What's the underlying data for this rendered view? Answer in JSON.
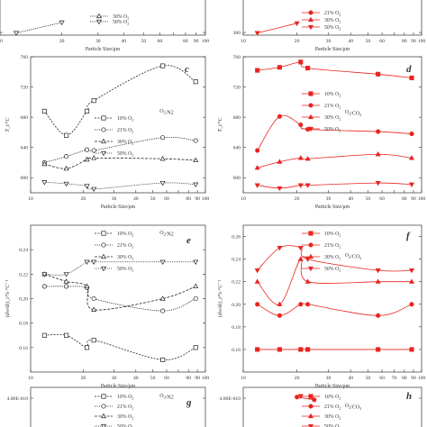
{
  "colors": {
    "black": "#222222",
    "red": "#e8241f",
    "frame": "#333333"
  },
  "chart_data": [
    {
      "id": "b",
      "type": "line",
      "panel_letter": "",
      "xlabel": "Particle Size/μm",
      "ylabel": "",
      "xlim": [
        10,
        100
      ],
      "ylim": [
        370,
        520
      ],
      "log_x": true,
      "x_ticks": [
        10,
        20,
        30,
        40,
        50,
        60,
        70,
        80,
        90,
        100
      ],
      "x_tick_labels": [
        "10",
        "20",
        "30",
        "40",
        "50",
        "60",
        "",
        "80",
        "90",
        "100"
      ],
      "y_ticks": [
        380
      ],
      "y_tick_labels": [
        "380"
      ],
      "legend_title": "",
      "series": [
        {
          "name": "30% O2",
          "marker": "triangle-up",
          "x": [],
          "y": []
        },
        {
          "name": "50% O2",
          "marker": "triangle-down",
          "x": [
            12,
            20
          ],
          "y": [
            378,
            418
          ]
        }
      ]
    },
    {
      "id": "b2",
      "type": "line",
      "panel_letter": "",
      "xlabel": "Particle Size/μm",
      "ylabel": "",
      "xlim": [
        10,
        100
      ],
      "ylim": [
        370,
        520
      ],
      "log_x": true,
      "x_ticks": [
        10,
        20,
        30,
        40,
        50,
        60,
        70,
        80,
        90,
        100
      ],
      "x_tick_labels": [
        "10",
        "20",
        "30",
        "40",
        "50",
        "60",
        "",
        "80",
        "90",
        "100"
      ],
      "y_ticks": [
        380
      ],
      "y_tick_labels": [
        "380"
      ],
      "legend_title": "",
      "series": [
        {
          "name": "21% O2",
          "marker": "circle-filled",
          "x": [],
          "y": []
        },
        {
          "name": "30% O2",
          "marker": "triangle-up-filled",
          "x": [],
          "y": []
        },
        {
          "name": "50% O2",
          "marker": "triangle-down-filled",
          "x": [
            12,
            20
          ],
          "y": [
            378,
            415
          ]
        }
      ]
    },
    {
      "id": "c",
      "type": "line",
      "panel_letter": "c",
      "xlabel": "Particle Size/μm",
      "ylabel": "T_i/°C",
      "xlim": [
        10,
        100
      ],
      "ylim": [
        580,
        760
      ],
      "log_x": true,
      "x_ticks": [
        10,
        20,
        30,
        40,
        50,
        60,
        70,
        80,
        90,
        100
      ],
      "x_tick_labels": [
        "10",
        "20",
        "30",
        "40",
        "50",
        "60",
        "",
        "80",
        "90",
        "100"
      ],
      "y_ticks": [
        600,
        640,
        680,
        720,
        760
      ],
      "y_tick_labels": [
        "600",
        "640",
        "680",
        "720",
        "760"
      ],
      "legend_title": "O2/N2",
      "series": [
        {
          "name": "10% O2",
          "marker": "square",
          "x": [
            12,
            16,
            21,
            23,
            57,
            88
          ],
          "y": [
            688,
            656,
            688,
            702,
            748,
            727
          ]
        },
        {
          "name": "21% O2",
          "marker": "circle",
          "x": [
            12,
            16,
            21,
            23,
            57,
            88
          ],
          "y": [
            620,
            628,
            637,
            636,
            653,
            649
          ]
        },
        {
          "name": "30% O2",
          "marker": "triangle-up",
          "x": [
            12,
            16,
            21,
            23,
            57,
            88
          ],
          "y": [
            618,
            612,
            624,
            626,
            625,
            623
          ]
        },
        {
          "name": "50% O2",
          "marker": "triangle-down",
          "x": [
            12,
            16,
            21,
            23,
            57,
            88
          ],
          "y": [
            594,
            592,
            589,
            585,
            593,
            591
          ]
        }
      ]
    },
    {
      "id": "d",
      "type": "line",
      "panel_letter": "d",
      "xlabel": "Particle Size/μm",
      "ylabel": "T_i/°C",
      "xlim": [
        10,
        100
      ],
      "ylim": [
        580,
        760
      ],
      "log_x": true,
      "x_ticks": [
        10,
        20,
        30,
        40,
        50,
        60,
        70,
        80,
        90,
        100
      ],
      "x_tick_labels": [
        "10",
        "20",
        "30",
        "40",
        "50",
        "60",
        "",
        "80",
        "90",
        "100"
      ],
      "y_ticks": [
        600,
        640,
        680,
        720,
        760
      ],
      "y_tick_labels": [
        "600",
        "640",
        "680",
        "720",
        "760"
      ],
      "legend_title": "O2/CO2",
      "series": [
        {
          "name": "10% O2",
          "marker": "square-filled",
          "x": [
            12,
            16,
            21,
            23,
            57,
            88
          ],
          "y": [
            742,
            746,
            753,
            745,
            737,
            732
          ]
        },
        {
          "name": "21% O2",
          "marker": "circle-filled",
          "x": [
            12,
            16,
            21,
            23,
            57,
            88
          ],
          "y": [
            636,
            681,
            670,
            664,
            661,
            658
          ]
        },
        {
          "name": "30% O2",
          "marker": "triangle-up-filled",
          "x": [
            12,
            16,
            21,
            23,
            57,
            88
          ],
          "y": [
            613,
            621,
            626,
            625,
            631,
            626
          ]
        },
        {
          "name": "50% O2",
          "marker": "triangle-down-filled",
          "x": [
            12,
            16,
            21,
            23,
            57,
            88
          ],
          "y": [
            590,
            586,
            590,
            590,
            593,
            591
          ]
        }
      ]
    },
    {
      "id": "e",
      "type": "line",
      "panel_letter": "e",
      "xlabel": "Particle Size/μm",
      "ylabel": "(dw/dt)_i/%·°C⁻¹",
      "xlim": [
        10,
        100
      ],
      "ylim": [
        0.14,
        0.26
      ],
      "log_x": true,
      "x_ticks": [
        10,
        20,
        30,
        40,
        50,
        60,
        70,
        80,
        90,
        100
      ],
      "x_tick_labels": [
        "10",
        "20",
        "30",
        "40",
        "50",
        "60",
        "",
        "80",
        "90",
        "100"
      ],
      "y_ticks": [
        0.16,
        0.18,
        0.2,
        0.22,
        0.24
      ],
      "y_tick_labels": [
        "0.16",
        "0.18",
        "0.20",
        "0.22",
        "0.24"
      ],
      "legend_title": "O2/N2",
      "series": [
        {
          "name": "10% O2",
          "marker": "square",
          "x": [
            12,
            16,
            21,
            23,
            57,
            88
          ],
          "y": [
            0.17,
            0.17,
            0.16,
            0.166,
            0.15,
            0.16
          ]
        },
        {
          "name": "21% O2",
          "marker": "circle",
          "x": [
            12,
            16,
            21,
            23,
            57,
            88
          ],
          "y": [
            0.21,
            0.21,
            0.209,
            0.2,
            0.19,
            0.2
          ]
        },
        {
          "name": "30% O2",
          "marker": "triangle-up",
          "x": [
            12,
            16,
            21,
            23,
            57,
            88
          ],
          "y": [
            0.22,
            0.214,
            0.21,
            0.191,
            0.2,
            0.21
          ]
        },
        {
          "name": "50% O2",
          "marker": "triangle-down",
          "x": [
            12,
            16,
            21,
            23,
            57,
            88
          ],
          "y": [
            0.22,
            0.22,
            0.23,
            0.23,
            0.23,
            0.23
          ]
        }
      ]
    },
    {
      "id": "f",
      "type": "line",
      "panel_letter": "f",
      "xlabel": "Particle Size/μm",
      "ylabel": "(dw/dt)_i/%·°C⁻¹",
      "xlim": [
        10,
        100
      ],
      "ylim": [
        0.14,
        0.27
      ],
      "log_x": true,
      "x_ticks": [
        10,
        20,
        30,
        40,
        50,
        60,
        70,
        80,
        90,
        100
      ],
      "x_tick_labels": [
        "10",
        "20",
        "30",
        "40",
        "50",
        "60",
        "70",
        "80",
        "90",
        "100"
      ],
      "y_ticks": [
        0.16,
        0.18,
        0.2,
        0.22,
        0.24,
        0.26
      ],
      "y_tick_labels": [
        "0.16",
        "0.18",
        "0.20",
        "0.22",
        "0.24",
        "0.26"
      ],
      "legend_title": "O2/CO2",
      "series": [
        {
          "name": "10% O2",
          "marker": "square-filled",
          "x": [
            12,
            16,
            21,
            23,
            57,
            88
          ],
          "y": [
            0.16,
            0.16,
            0.16,
            0.16,
            0.16,
            0.16
          ]
        },
        {
          "name": "21% O2",
          "marker": "circle-filled",
          "x": [
            12,
            16,
            21,
            23,
            57,
            88
          ],
          "y": [
            0.2,
            0.19,
            0.2,
            0.2,
            0.19,
            0.2
          ]
        },
        {
          "name": "30% O2",
          "marker": "triangle-up-filled",
          "x": [
            12,
            16,
            21,
            23,
            57,
            88
          ],
          "y": [
            0.22,
            0.2,
            0.24,
            0.22,
            0.22,
            0.22
          ]
        },
        {
          "name": "50% O2",
          "marker": "triangle-down-filled",
          "x": [
            12,
            16,
            21,
            23,
            57,
            88
          ],
          "y": [
            0.23,
            0.25,
            0.25,
            0.24,
            0.23,
            0.23
          ]
        }
      ]
    },
    {
      "id": "g",
      "type": "line",
      "panel_letter": "g",
      "xlabel": "",
      "ylabel": "",
      "xlim": [
        10,
        100
      ],
      "ylim": [
        0,
        5e-10
      ],
      "log_x": true,
      "x_ticks": [],
      "x_tick_labels": [],
      "y_ticks": [
        4e-10
      ],
      "y_tick_labels": [
        "4.00E-010"
      ],
      "legend_title": "O2/N2",
      "series": [
        {
          "name": "10% O2",
          "marker": "square",
          "x": [],
          "y": []
        },
        {
          "name": "21% O2",
          "marker": "circle",
          "x": [],
          "y": []
        },
        {
          "name": "30% O2",
          "marker": "triangle-up",
          "x": [],
          "y": []
        },
        {
          "name": "50% O2",
          "marker": "triangle-down",
          "x": [],
          "y": []
        }
      ]
    },
    {
      "id": "h",
      "type": "line",
      "panel_letter": "h",
      "xlabel": "",
      "ylabel": "",
      "xlim": [
        10,
        100
      ],
      "ylim": [
        0,
        5e-10
      ],
      "log_x": true,
      "x_ticks": [],
      "x_tick_labels": [],
      "y_ticks": [
        4e-10
      ],
      "y_tick_labels": [
        "4.00E-010"
      ],
      "legend_title": "O2/CO2",
      "series": [
        {
          "name": "10% O2",
          "marker": "square-filled",
          "x": [],
          "y": []
        },
        {
          "name": "21% O2",
          "marker": "circle-filled",
          "x": [
            20,
            25
          ],
          "y": [
            4.1e-10,
            3.85e-10
          ]
        },
        {
          "name": "30% O2",
          "marker": "triangle-up-filled",
          "x": [],
          "y": []
        },
        {
          "name": "50% O2",
          "marker": "triangle-down-filled",
          "x": [
            21
          ],
          "y": [
            4.2e-10
          ]
        }
      ]
    }
  ]
}
